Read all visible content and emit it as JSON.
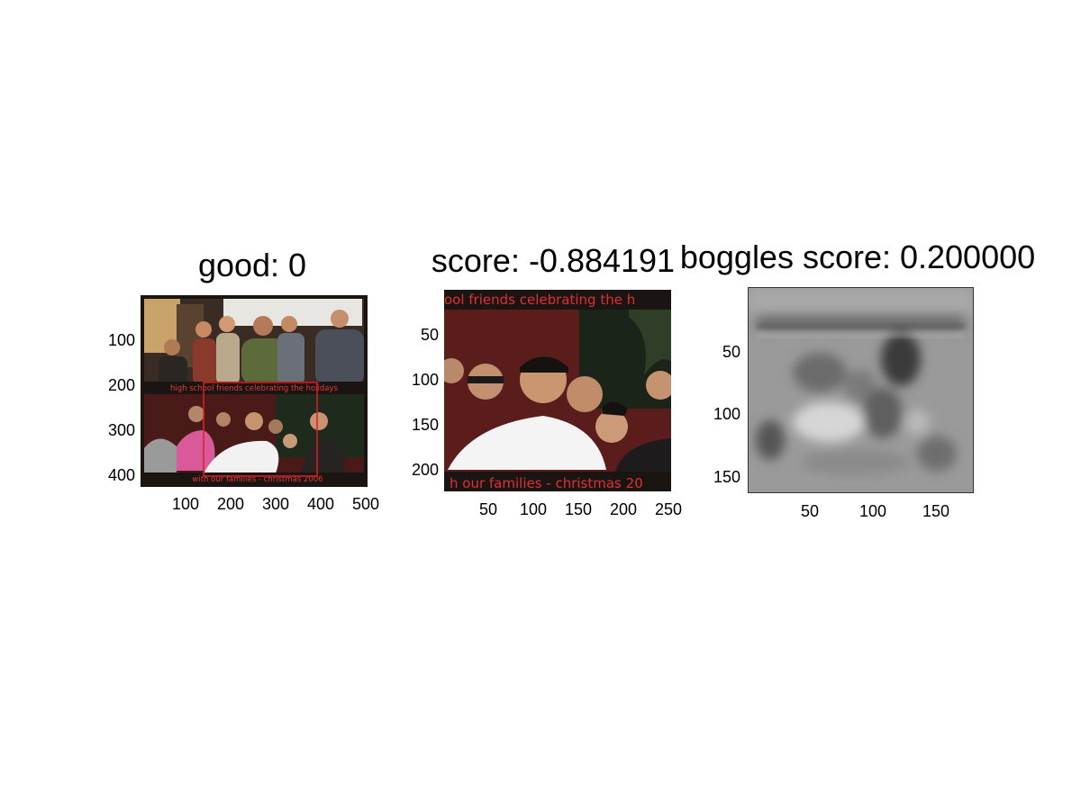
{
  "figure": {
    "panel_left": {
      "title": "good: 0",
      "y_ticks": [
        "100",
        "200",
        "300",
        "400"
      ],
      "x_ticks": [
        "100",
        "200",
        "300",
        "400",
        "500"
      ],
      "photo_caption_top": "high school friends celebrating the holidays",
      "photo_caption_bottom": "with our families - christmas 2006",
      "box_color": "#e02020"
    },
    "panel_middle": {
      "title": "score: -0.884191",
      "y_ticks": [
        "50",
        "100",
        "150",
        "200"
      ],
      "x_ticks": [
        "50",
        "100",
        "150",
        "200",
        "250"
      ],
      "photo_caption_top": "ool friends celebrating the h",
      "photo_caption_bottom": "h our families - christmas 20",
      "caption_color": "#e23030"
    },
    "panel_right": {
      "title": "boggles score: 0.200000",
      "y_ticks": [
        "50",
        "100",
        "150"
      ],
      "x_ticks": [
        "50",
        "100",
        "150"
      ]
    }
  }
}
